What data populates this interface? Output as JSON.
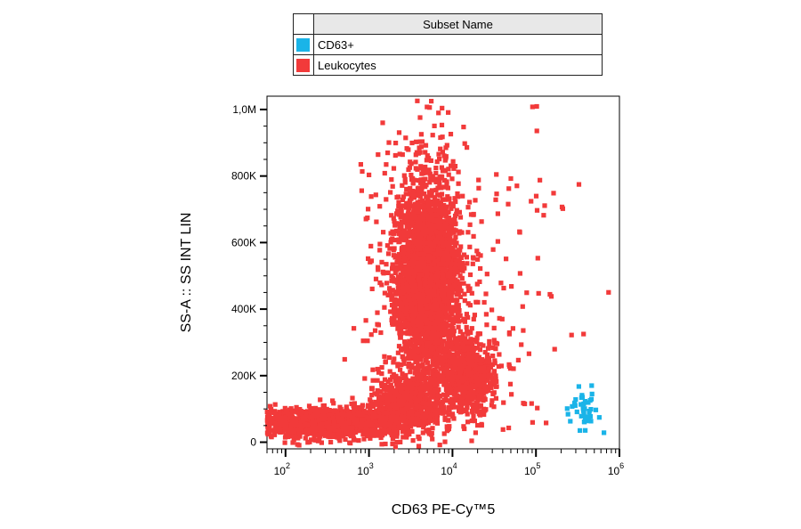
{
  "legend": {
    "header": "Subset Name",
    "items": [
      {
        "name": "CD63+",
        "color": "#1ab4e8"
      },
      {
        "name": "Leukocytes",
        "color": "#f23a3a"
      }
    ]
  },
  "chart_data": {
    "type": "scatter",
    "xlabel": "CD63 PE-Cy™5",
    "ylabel": "SS-A :: SS INT LIN",
    "x_scale": "log",
    "xlim": [
      60,
      1000000
    ],
    "ylim": [
      -20000,
      1040000
    ],
    "y_ticks": [
      {
        "value": 0,
        "label": "0"
      },
      {
        "value": 200000,
        "label": "200K"
      },
      {
        "value": 400000,
        "label": "400K"
      },
      {
        "value": 600000,
        "label": "600K"
      },
      {
        "value": 800000,
        "label": "800K"
      },
      {
        "value": 1000000,
        "label": "1,0M"
      }
    ],
    "x_ticks": [
      {
        "value": 100,
        "base": "10",
        "exp": "2"
      },
      {
        "value": 1000,
        "base": "10",
        "exp": "3"
      },
      {
        "value": 10000,
        "base": "10",
        "exp": "4"
      },
      {
        "value": 100000,
        "base": "10",
        "exp": "5"
      },
      {
        "value": 1000000,
        "base": "10",
        "exp": "6"
      }
    ],
    "series": [
      {
        "name": "Leukocytes",
        "color": "#f23a3a",
        "clusters": [
          {
            "x_center": 5000,
            "x_log_sd": 0.17,
            "y_center": 480000,
            "y_sd": 130000,
            "count": 2600
          },
          {
            "x_center": 4500,
            "x_log_sd": 0.25,
            "y_center": 520000,
            "y_sd": 190000,
            "count": 900
          },
          {
            "x_center": 15000,
            "x_log_sd": 0.17,
            "y_center": 200000,
            "y_sd": 60000,
            "count": 700
          },
          {
            "x_center": 300,
            "x_log_sd": 0.45,
            "y_center": 60000,
            "y_sd": 22000,
            "count": 1500
          },
          {
            "x_center": 3000,
            "x_log_sd": 0.22,
            "y_center": 110000,
            "y_sd": 45000,
            "count": 600
          },
          {
            "x_center": 20000,
            "x_log_sd": 0.6,
            "y_center": 500000,
            "y_sd": 280000,
            "count": 180
          }
        ]
      },
      {
        "name": "CD63+",
        "color": "#1ab4e8",
        "clusters": [
          {
            "x_center": 350000,
            "x_log_sd": 0.1,
            "y_center": 100000,
            "y_sd": 25000,
            "count": 45
          }
        ]
      }
    ]
  }
}
